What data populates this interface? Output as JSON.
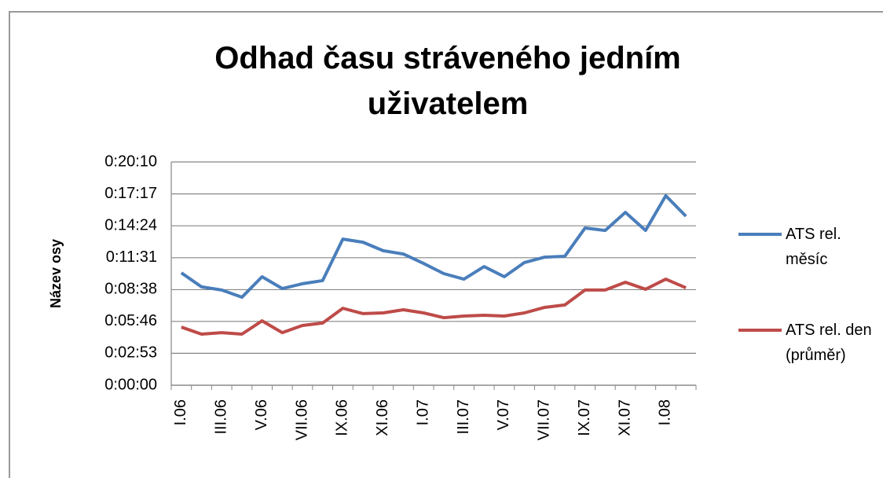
{
  "chart_data": {
    "type": "line",
    "title": "Odhad času stráveného jedním uživatelem",
    "y_label": "Název osy",
    "categories": [
      "I.06",
      null,
      "III.06",
      null,
      "V.06",
      null,
      "VII.06",
      null,
      "IX.06",
      null,
      "XI.06",
      null,
      "I.07",
      null,
      "III.07",
      null,
      "V.07",
      null,
      "VII.07",
      null,
      "IX.07",
      null,
      "XI.07",
      null,
      "I.08",
      null
    ],
    "series": [
      {
        "name": "ATS rel. měsíc",
        "color": "#4a7ebb",
        "values": [
          609,
          533,
          516,
          477,
          588,
          524,
          550,
          567,
          792,
          775,
          729,
          711,
          660,
          605,
          575,
          643,
          588,
          665,
          694,
          699,
          852,
          839,
          937,
          839,
          1027,
          916
        ]
      },
      {
        "name": "ATS rel. den (průměr)",
        "color": "#be4b48",
        "values": [
          315,
          277,
          285,
          277,
          349,
          285,
          324,
          337,
          417,
          388,
          392,
          409,
          392,
          366,
          375,
          379,
          375,
          392,
          422,
          435,
          516,
          516,
          558,
          520,
          575,
          528
        ]
      }
    ],
    "ylim": [
      0,
      1210
    ],
    "yticks": [
      {
        "value": 0,
        "label": "0:00:00"
      },
      {
        "value": 173,
        "label": "0:02:53"
      },
      {
        "value": 346,
        "label": "0:05:46"
      },
      {
        "value": 518,
        "label": "0:08:38"
      },
      {
        "value": 691,
        "label": "0:11:31"
      },
      {
        "value": 864,
        "label": "0:14:24"
      },
      {
        "value": 1037,
        "label": "0:17:17"
      },
      {
        "value": 1210,
        "label": "0:20:10"
      }
    ],
    "grid": true,
    "legend": "right"
  }
}
